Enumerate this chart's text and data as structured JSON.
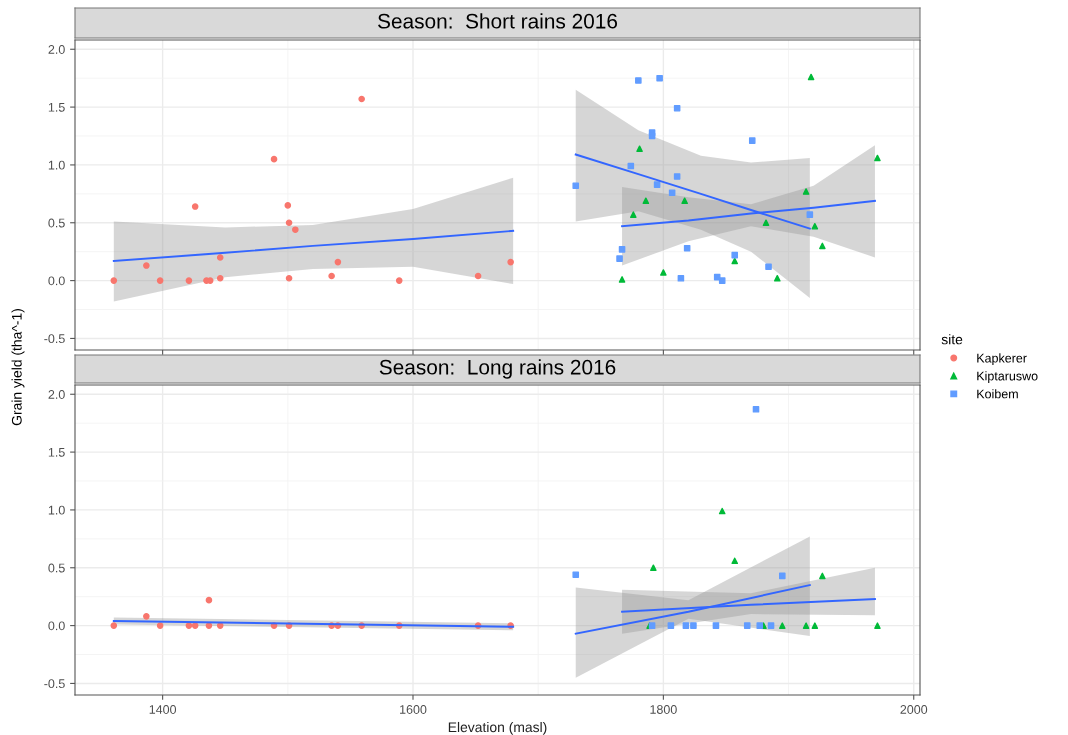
{
  "chart_data": [
    {
      "type": "scatter",
      "title": "Season:  Short rains 2016",
      "ylabel": "Grain yield (tha^-1)",
      "legend": "right",
      "legend_title": "site",
      "grid": true,
      "tick_labels": "y",
      "xlim": [
        1330,
        2005
      ],
      "xticks": [
        1400,
        1600,
        1800,
        2000
      ],
      "ylim": [
        -0.6,
        2.08
      ],
      "yticks": [
        -0.5,
        {
          "value": 0,
          "label": "0.0"
        },
        0.5,
        {
          "value": 1,
          "label": "1.0"
        },
        1.5,
        {
          "value": 2,
          "label": "2.0"
        }
      ],
      "series": [
        {
          "name": "Kapkerer",
          "color": "#f8766d",
          "marker": "circle",
          "x": [
            1361,
            1387,
            1398,
            1421,
            1426,
            1435,
            1438,
            1446,
            1446,
            1489,
            1500,
            1501,
            1506,
            1501,
            1535,
            1540,
            1559,
            1589,
            1652,
            1678
          ],
          "values": [
            0.0,
            0.13,
            0.0,
            0.0,
            0.64,
            0.0,
            0.0,
            0.2,
            0.02,
            1.05,
            0.65,
            0.5,
            0.44,
            0.02,
            0.04,
            0.16,
            1.57,
            0.0,
            0.04,
            0.16
          ]
        },
        {
          "name": "Kiptaruswo",
          "color": "#00ba38",
          "marker": "triangle",
          "x": [
            1918,
            1971,
            1781,
            1786,
            1776,
            1817,
            1882,
            1921,
            1927,
            1767,
            1800,
            1891,
            1857,
            1914
          ],
          "values": [
            1.76,
            1.06,
            1.14,
            0.69,
            0.57,
            0.69,
            0.5,
            0.47,
            0.3,
            0.01,
            0.07,
            0.02,
            0.17,
            0.77
          ]
        },
        {
          "name": "Koibem",
          "color": "#619cff",
          "marker": "square",
          "x": [
            1780,
            1797,
            1811,
            1791,
            1791,
            1871,
            1730,
            1774,
            1795,
            1811,
            1807,
            1767,
            1765,
            1819,
            1814,
            1843,
            1847,
            1884,
            1857,
            1917
          ],
          "values": [
            1.73,
            1.75,
            1.49,
            1.28,
            1.25,
            1.21,
            0.82,
            0.99,
            0.83,
            0.9,
            0.76,
            0.27,
            0.19,
            0.28,
            0.02,
            0.03,
            0.0,
            0.12,
            0.22,
            0.57
          ]
        },
        {
          "type": "line",
          "color": "#3366ff",
          "x": [
            1361,
            1450,
            1520,
            1600,
            1680
          ],
          "values": [
            0.17,
            0.24,
            0.3,
            0.36,
            0.43
          ],
          "lower": [
            -0.18,
            0.03,
            0.1,
            0.12,
            -0.03
          ],
          "upper": [
            0.51,
            0.46,
            0.48,
            0.62,
            0.89
          ]
        },
        {
          "type": "line",
          "color": "#3366ff",
          "x": [
            1730,
            1780,
            1830,
            1870,
            1917
          ],
          "values": [
            1.09,
            0.92,
            0.75,
            0.61,
            0.45
          ],
          "lower": [
            0.51,
            0.6,
            0.44,
            0.25,
            -0.15
          ],
          "upper": [
            1.65,
            1.3,
            1.08,
            1.02,
            1.06
          ]
        },
        {
          "type": "line",
          "color": "#3366ff",
          "x": [
            1767,
            1820,
            1870,
            1920,
            1969
          ],
          "values": [
            0.47,
            0.52,
            0.58,
            0.63,
            0.69
          ],
          "lower": [
            0.13,
            0.34,
            0.47,
            0.38,
            0.2
          ],
          "upper": [
            0.81,
            0.72,
            0.66,
            0.82,
            1.17
          ]
        }
      ]
    },
    {
      "type": "scatter",
      "title": "Season:  Long rains 2016",
      "xlabel": "Elevation (masl)",
      "grid": true,
      "xlim": [
        1330,
        2005
      ],
      "xticks": [
        1400,
        1600,
        1800,
        2000
      ],
      "ylim": [
        -0.6,
        2.08
      ],
      "yticks": [
        -0.5,
        {
          "value": 0,
          "label": "0.0"
        },
        0.5,
        {
          "value": 1,
          "label": "1.0"
        },
        1.5,
        {
          "value": 2,
          "label": "2.0"
        }
      ],
      "series": [
        {
          "color": "#f8766d",
          "marker": "circle",
          "x": [
            1361,
            1387,
            1398,
            1421,
            1426,
            1437,
            1437,
            1446,
            1489,
            1501,
            1535,
            1540,
            1559,
            1589,
            1652,
            1678
          ],
          "values": [
            0.0,
            0.08,
            0.0,
            0.0,
            0.0,
            0.22,
            0.0,
            0.0,
            0.0,
            0.0,
            0.0,
            0.0,
            0.0,
            0.0,
            0.0,
            0.0
          ]
        },
        {
          "color": "#00ba38",
          "marker": "triangle",
          "x": [
            1847,
            1857,
            1792,
            1927,
            1914,
            1921,
            1971,
            1880,
            1895,
            1789
          ],
          "values": [
            0.99,
            0.56,
            0.5,
            0.43,
            0.0,
            0.0,
            0.0,
            0.0,
            0.0,
            0.0
          ]
        },
        {
          "color": "#619cff",
          "marker": "square",
          "x": [
            1874,
            1730,
            1895,
            1842,
            1867,
            1877,
            1886,
            1818,
            1806,
            1791,
            1824
          ],
          "values": [
            1.87,
            0.44,
            0.43,
            0.0,
            0.0,
            0.0,
            0.0,
            0.0,
            0.0,
            0.0,
            0.0
          ]
        },
        {
          "type": "line",
          "color": "#3366ff",
          "x": [
            1361,
            1680
          ],
          "values": [
            0.04,
            -0.01
          ],
          "lower": [
            0.01,
            -0.04
          ],
          "upper": [
            0.07,
            0.02
          ]
        },
        {
          "type": "line",
          "color": "#3366ff",
          "x": [
            1730,
            1820,
            1917
          ],
          "values": [
            -0.07,
            0.12,
            0.35
          ],
          "lower": [
            -0.45,
            0.06,
            -0.09
          ],
          "upper": [
            0.33,
            0.22,
            0.77
          ]
        },
        {
          "type": "line",
          "color": "#3366ff",
          "x": [
            1767,
            1870,
            1969
          ],
          "values": [
            0.12,
            0.18,
            0.23
          ],
          "lower": [
            -0.07,
            0.1,
            0.09
          ],
          "upper": [
            0.31,
            0.28,
            0.5
          ]
        }
      ]
    }
  ]
}
